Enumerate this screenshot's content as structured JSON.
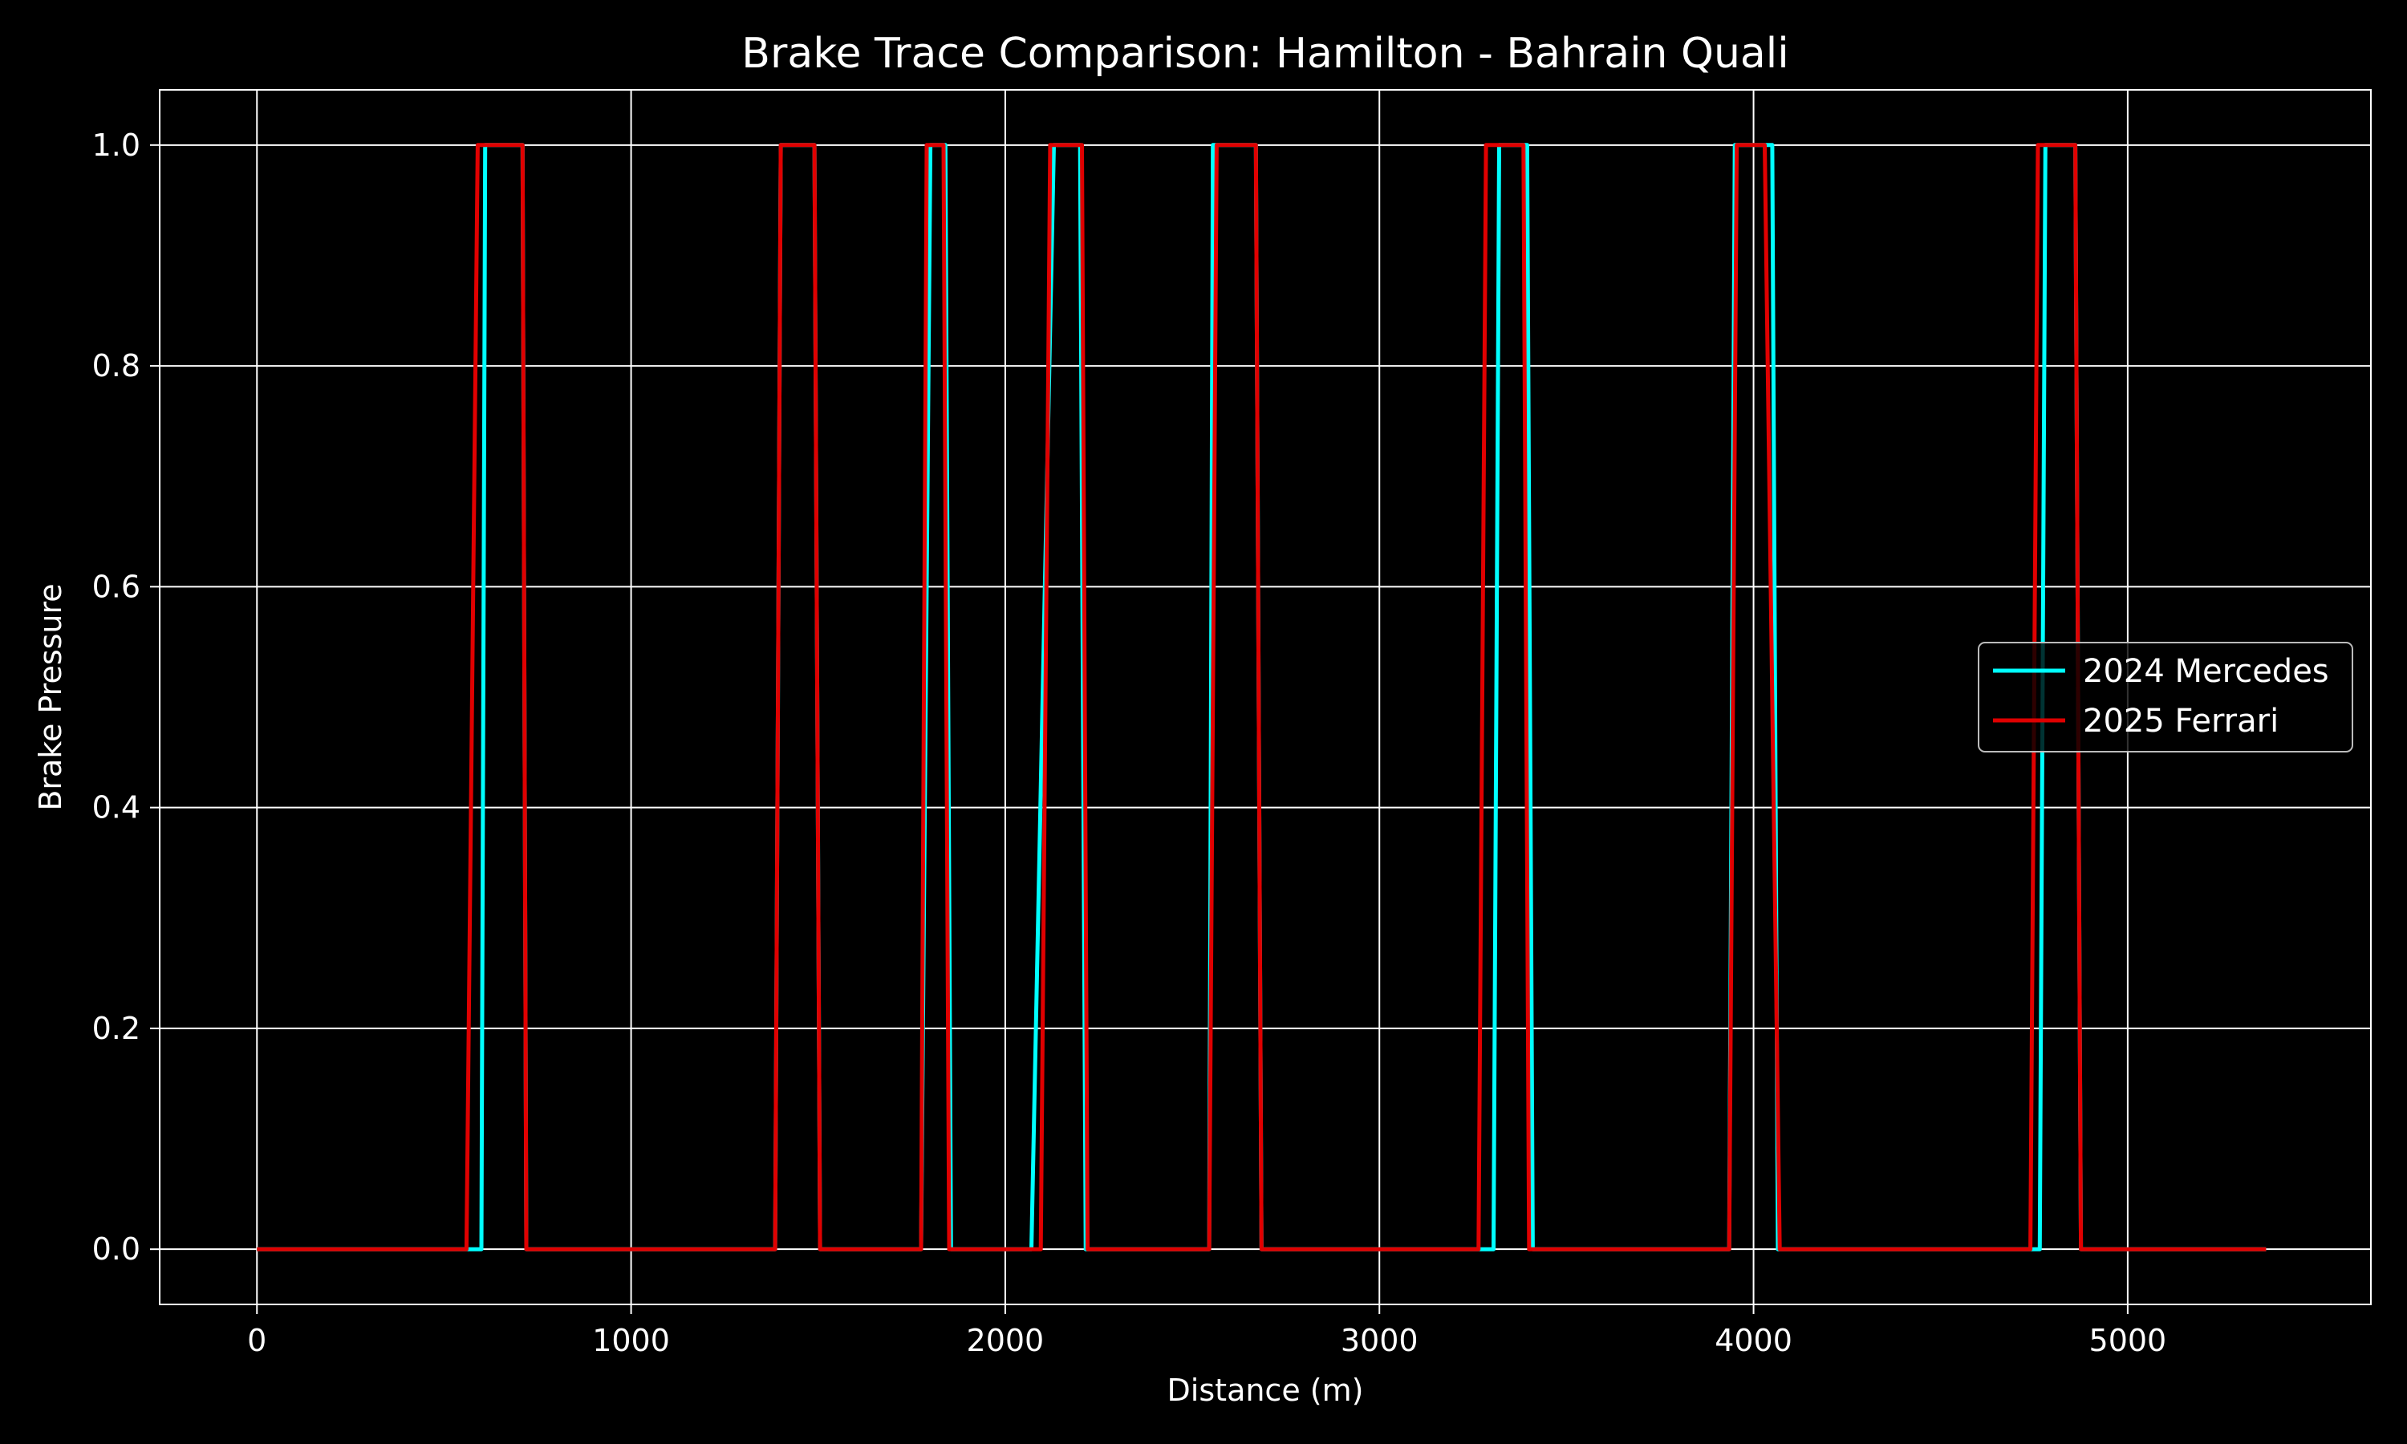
{
  "chart_data": {
    "type": "line",
    "title": "Brake Trace Comparison: Hamilton - Bahrain Quali",
    "xlabel": "Distance (m)",
    "ylabel": "Brake Pressure",
    "xlim": [
      -260,
      5650
    ],
    "ylim": [
      -0.05,
      1.05
    ],
    "xticks": [
      0,
      1000,
      2000,
      3000,
      4000,
      5000
    ],
    "yticks": [
      0.0,
      0.2,
      0.4,
      0.6,
      0.8,
      1.0
    ],
    "xtick_labels": [
      "0",
      "1000",
      "2000",
      "3000",
      "4000",
      "5000"
    ],
    "ytick_labels": [
      "0.0",
      "0.2",
      "0.4",
      "0.6",
      "0.8",
      "1.0"
    ],
    "grid": true,
    "legend_position": "center-right",
    "series": [
      {
        "name": "2024 Mercedes",
        "color": "#00ffff",
        "points": [
          [
            0,
            0
          ],
          [
            580,
            0
          ],
          [
            600,
            0
          ],
          [
            610,
            1
          ],
          [
            710,
            1
          ],
          [
            720,
            0
          ],
          [
            1385,
            0
          ],
          [
            1400,
            1
          ],
          [
            1490,
            1
          ],
          [
            1505,
            0
          ],
          [
            1775,
            0
          ],
          [
            1800,
            1
          ],
          [
            1840,
            1
          ],
          [
            1855,
            0
          ],
          [
            2070,
            0
          ],
          [
            2130,
            1
          ],
          [
            2200,
            1
          ],
          [
            2215,
            0
          ],
          [
            2545,
            0
          ],
          [
            2555,
            1
          ],
          [
            2670,
            1
          ],
          [
            2685,
            0
          ],
          [
            3285,
            0
          ],
          [
            3305,
            0
          ],
          [
            3320,
            1
          ],
          [
            3395,
            1
          ],
          [
            3410,
            0
          ],
          [
            3935,
            0
          ],
          [
            3950,
            1
          ],
          [
            4050,
            1
          ],
          [
            4065,
            0
          ],
          [
            4740,
            0
          ],
          [
            4765,
            0
          ],
          [
            4780,
            1
          ],
          [
            4860,
            1
          ],
          [
            4875,
            0
          ],
          [
            5370,
            0
          ]
        ]
      },
      {
        "name": "2025 Ferrari",
        "color": "#e00000",
        "points": [
          [
            0,
            0
          ],
          [
            560,
            0
          ],
          [
            590,
            1
          ],
          [
            710,
            1
          ],
          [
            720,
            0
          ],
          [
            1385,
            0
          ],
          [
            1400,
            1
          ],
          [
            1490,
            1
          ],
          [
            1505,
            0
          ],
          [
            1775,
            0
          ],
          [
            1790,
            1
          ],
          [
            1835,
            1
          ],
          [
            1850,
            0
          ],
          [
            2095,
            0
          ],
          [
            2120,
            1
          ],
          [
            2205,
            1
          ],
          [
            2220,
            0
          ],
          [
            2545,
            0
          ],
          [
            2565,
            1
          ],
          [
            2670,
            1
          ],
          [
            2685,
            0
          ],
          [
            3265,
            0
          ],
          [
            3285,
            1
          ],
          [
            3385,
            1
          ],
          [
            3400,
            0
          ],
          [
            3935,
            0
          ],
          [
            3955,
            1
          ],
          [
            4030,
            1
          ],
          [
            4070,
            0
          ],
          [
            4740,
            0
          ],
          [
            4760,
            1
          ],
          [
            4860,
            1
          ],
          [
            4875,
            0
          ],
          [
            5370,
            0
          ]
        ]
      }
    ]
  }
}
